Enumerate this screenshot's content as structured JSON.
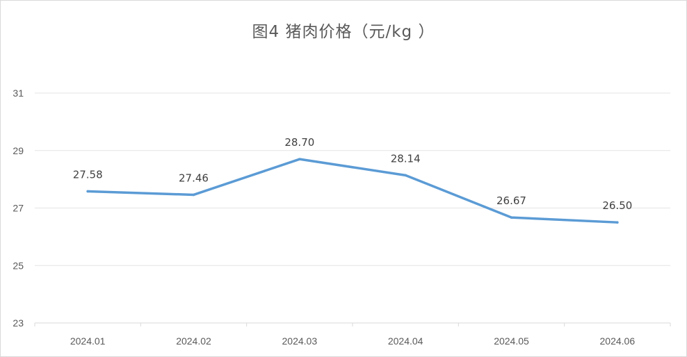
{
  "chart_data": {
    "type": "line",
    "title": "图4  猪肉价格（元/kg ）",
    "xlabel": "",
    "ylabel": "",
    "categories": [
      "2024.01",
      "2024.02",
      "2024.03",
      "2024.04",
      "2024.05",
      "2024.06"
    ],
    "series": [
      {
        "values": [
          27.58,
          27.46,
          28.7,
          28.14,
          26.67,
          26.5
        ],
        "labels": [
          "27.58",
          "27.46",
          "28.70",
          "28.14",
          "26.67",
          "26.50"
        ],
        "color": "#5b9bd5"
      }
    ],
    "ylim": [
      23,
      31
    ],
    "yticks": [
      23,
      25,
      27,
      29,
      31
    ],
    "ytick_labels": [
      "23",
      "25",
      "27",
      "29",
      "31"
    ],
    "grid": true,
    "legend": "none"
  }
}
